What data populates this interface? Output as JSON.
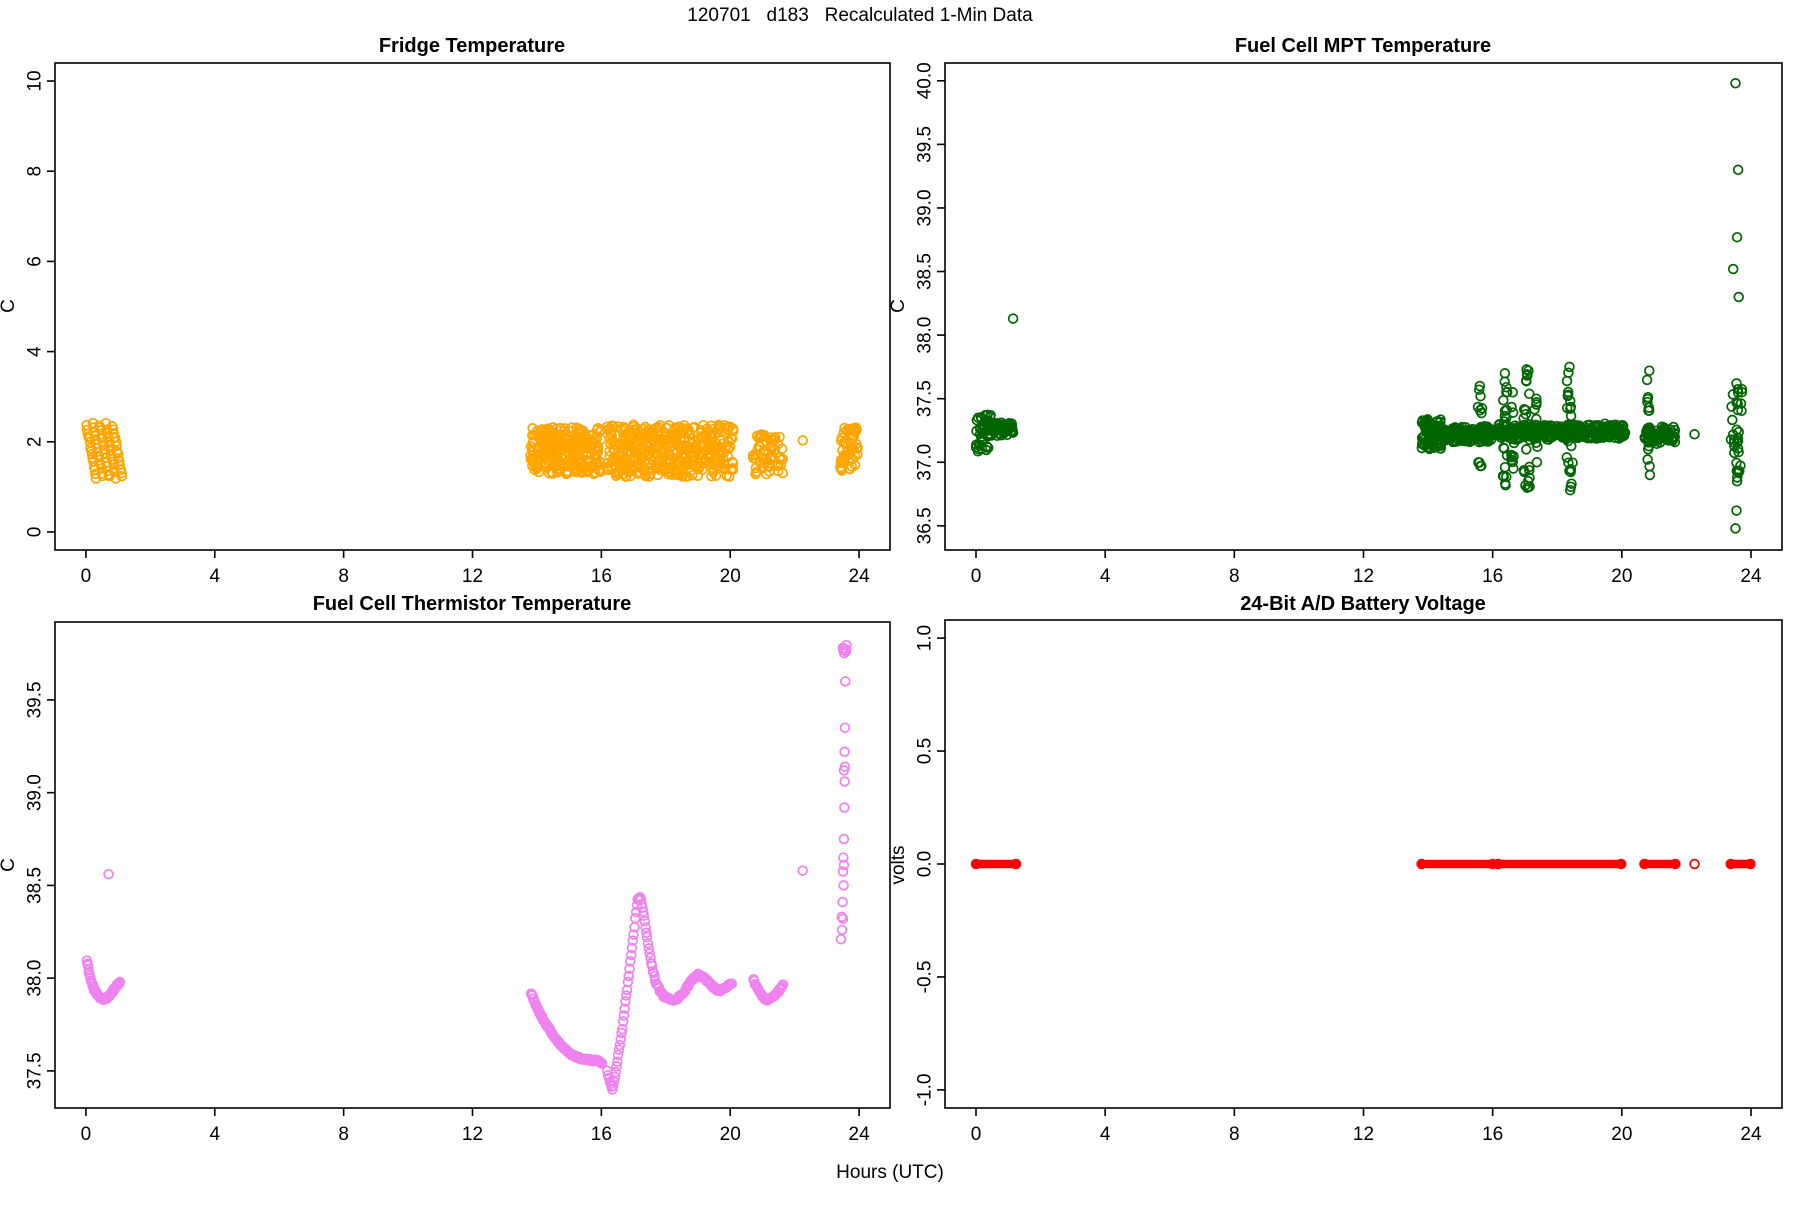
{
  "figure_title": "120701   d183   Recalculated 1-Min Data",
  "xlabel": "Hours (UTC)",
  "chart_data": [
    {
      "id": "fridge-temperature",
      "type": "scatter",
      "title": "Fridge Temperature",
      "ylabel": "C",
      "point_color": "#FFA500",
      "marker": "open-circle",
      "grid": false,
      "legend": "none",
      "xlim": [
        -0.96,
        24.96
      ],
      "ylim": [
        -0.4,
        10.4
      ],
      "xticks": [
        "0",
        "4",
        "8",
        "12",
        "16",
        "20",
        "24"
      ],
      "yticks": [
        "0",
        "2",
        "4",
        "6",
        "8",
        "10"
      ],
      "elements": [
        {
          "type": "streaks",
          "t0": 0.02,
          "streaks": 5,
          "gap": 0.2,
          "dt": 0.3,
          "vtop": 2.38,
          "vbot": 1.22,
          "n": 15,
          "note": "sawtooth cooling cycles 0-1.2h, 1.2-2.4 C"
        },
        {
          "type": "band",
          "t0": 13.8,
          "t1": 16.0,
          "vmin": 1.28,
          "vmax": 2.32,
          "n": 250
        },
        {
          "type": "band",
          "t0": 16.17,
          "t1": 20.1,
          "vmin": 1.22,
          "vmax": 2.38,
          "n": 430
        },
        {
          "type": "band",
          "t0": 20.7,
          "t1": 21.65,
          "vmin": 1.28,
          "vmax": 2.22,
          "n": 62
        },
        {
          "type": "points",
          "pts": [
            [
              22.25,
              2.03
            ]
          ]
        },
        {
          "type": "band",
          "t0": 23.38,
          "t1": 23.97,
          "vmin": 1.35,
          "vmax": 2.33,
          "n": 50
        }
      ]
    },
    {
      "id": "fuel-cell-mpt-temperature",
      "type": "scatter",
      "title": "Fuel Cell MPT Temperature",
      "ylabel": "C",
      "point_color": "#006400",
      "marker": "open-circle",
      "grid": false,
      "legend": "none",
      "xlim": [
        -0.96,
        24.96
      ],
      "ylim": [
        36.31,
        40.14
      ],
      "xticks": [
        "0",
        "4",
        "8",
        "12",
        "16",
        "20",
        "24"
      ],
      "yticks": [
        "36.5",
        "37.0",
        "37.5",
        "38.0",
        "38.5",
        "39.0",
        "39.5",
        "40.0"
      ],
      "elements": [
        {
          "type": "band",
          "t0": 0.0,
          "t1": 0.5,
          "vmin": 37.08,
          "vmax": 37.38,
          "n": 45
        },
        {
          "type": "tightband",
          "t0": 0.4,
          "t1": 1.15,
          "center": 37.26,
          "amp": 0.03,
          "n": 70
        },
        {
          "type": "points",
          "pts": [
            [
              1.15,
              38.13
            ]
          ]
        },
        {
          "type": "band",
          "t0": 13.8,
          "t1": 14.4,
          "vmin": 37.1,
          "vmax": 37.34,
          "n": 80
        },
        {
          "type": "tightband",
          "t0": 14.3,
          "t1": 16.0,
          "center": 37.22,
          "amp": 0.035,
          "n": 170
        },
        {
          "type": "burst",
          "t": 15.6,
          "spread": 0.08,
          "vmin": 36.97,
          "vmax": 37.6,
          "n": 16
        },
        {
          "type": "tightband",
          "t0": 16.17,
          "t1": 20.1,
          "center": 37.24,
          "amp": 0.035,
          "n": 380
        },
        {
          "type": "burst",
          "t": 16.38,
          "spread": 0.09,
          "vmin": 36.82,
          "vmax": 37.7,
          "n": 22
        },
        {
          "type": "burst",
          "t": 16.62,
          "spread": 0.06,
          "vmin": 36.95,
          "vmax": 37.55,
          "n": 12
        },
        {
          "type": "burst",
          "t": 17.05,
          "spread": 0.1,
          "vmin": 36.8,
          "vmax": 37.73,
          "n": 26
        },
        {
          "type": "burst",
          "t": 17.35,
          "spread": 0.06,
          "vmin": 37.0,
          "vmax": 37.5,
          "n": 10
        },
        {
          "type": "burst",
          "t": 18.38,
          "spread": 0.1,
          "vmin": 36.78,
          "vmax": 37.75,
          "n": 26
        },
        {
          "type": "tightband",
          "t0": 20.7,
          "t1": 21.65,
          "center": 37.22,
          "amp": 0.04,
          "n": 85
        },
        {
          "type": "burst",
          "t": 20.85,
          "spread": 0.07,
          "vmin": 36.9,
          "vmax": 37.72,
          "n": 16
        },
        {
          "type": "points",
          "pts": [
            [
              22.25,
              37.22
            ]
          ]
        },
        {
          "type": "burst",
          "t": 23.55,
          "spread": 0.17,
          "vmin": 36.85,
          "vmax": 37.62,
          "n": 34
        },
        {
          "type": "points",
          "pts": [
            [
              23.52,
              39.98
            ],
            [
              23.6,
              39.3
            ],
            [
              23.57,
              38.77
            ],
            [
              23.45,
              38.52
            ],
            [
              23.62,
              38.3
            ],
            [
              23.55,
              36.62
            ],
            [
              23.52,
              36.48
            ]
          ]
        }
      ]
    },
    {
      "id": "fuel-cell-thermistor-temperature",
      "type": "scatter",
      "title": "Fuel Cell Thermistor Temperature",
      "ylabel": "C",
      "point_color": "#EE82EE",
      "marker": "open-circle",
      "grid": false,
      "legend": "none",
      "xlim": [
        -0.96,
        24.96
      ],
      "ylim": [
        37.3,
        39.92
      ],
      "xticks": [
        "0",
        "4",
        "8",
        "12",
        "16",
        "20",
        "24"
      ],
      "yticks": [
        "37.5",
        "38.0",
        "38.5",
        "39.0",
        "39.5"
      ],
      "elements": [
        {
          "type": "curve",
          "step": 1.2,
          "jit": 0.006,
          "pts": [
            [
              0.03,
              38.1
            ],
            [
              0.12,
              38.01
            ],
            [
              0.25,
              37.94
            ],
            [
              0.4,
              37.9
            ],
            [
              0.55,
              37.885
            ],
            [
              0.7,
              37.9
            ],
            [
              0.88,
              37.94
            ],
            [
              1.05,
              37.98
            ]
          ]
        },
        {
          "type": "points",
          "pts": [
            [
              0.7,
              38.56
            ]
          ]
        },
        {
          "type": "curve",
          "step": 1.2,
          "jit": 0.005,
          "pts": [
            [
              13.82,
              37.92
            ],
            [
              14.0,
              37.84
            ],
            [
              14.25,
              37.76
            ],
            [
              14.55,
              37.68
            ],
            [
              14.85,
              37.62
            ],
            [
              15.1,
              37.585
            ],
            [
              15.3,
              37.57
            ],
            [
              15.6,
              37.56
            ],
            [
              15.9,
              37.555
            ],
            [
              16.02,
              37.54
            ]
          ]
        },
        {
          "type": "curve",
          "step": 1.6,
          "jit": 0.006,
          "pts": [
            [
              16.18,
              37.5
            ],
            [
              16.27,
              37.44
            ],
            [
              16.34,
              37.4
            ],
            [
              16.42,
              37.47
            ],
            [
              16.52,
              37.58
            ],
            [
              16.65,
              37.73
            ],
            [
              16.8,
              37.94
            ],
            [
              16.95,
              38.16
            ],
            [
              17.05,
              38.32
            ],
            [
              17.13,
              38.43
            ],
            [
              17.2,
              38.44
            ],
            [
              17.3,
              38.36
            ],
            [
              17.42,
              38.22
            ],
            [
              17.55,
              38.08
            ],
            [
              17.7,
              37.97
            ],
            [
              17.9,
              37.91
            ],
            [
              18.1,
              37.885
            ],
            [
              18.3,
              37.88
            ],
            [
              18.55,
              37.92
            ],
            [
              18.8,
              37.99
            ],
            [
              19.0,
              38.02
            ],
            [
              19.2,
              38.0
            ],
            [
              19.45,
              37.955
            ],
            [
              19.65,
              37.93
            ],
            [
              19.85,
              37.95
            ],
            [
              20.05,
              37.97
            ]
          ]
        },
        {
          "type": "curve",
          "step": 1.6,
          "jit": 0.006,
          "pts": [
            [
              20.72,
              37.99
            ],
            [
              20.92,
              37.92
            ],
            [
              21.12,
              37.88
            ],
            [
              21.32,
              37.895
            ],
            [
              21.5,
              37.93
            ],
            [
              21.64,
              37.965
            ]
          ]
        },
        {
          "type": "points",
          "pts": [
            [
              22.25,
              38.58
            ]
          ]
        },
        {
          "type": "points",
          "pts": [
            [
              23.44,
              38.21
            ],
            [
              23.47,
              38.26
            ],
            [
              23.5,
              38.32
            ],
            [
              23.46,
              38.33
            ],
            [
              23.49,
              38.41
            ],
            [
              23.52,
              38.5
            ],
            [
              23.5,
              38.575
            ],
            [
              23.53,
              38.61
            ],
            [
              23.51,
              38.65
            ],
            [
              23.53,
              38.75
            ],
            [
              23.54,
              38.92
            ],
            [
              23.55,
              39.06
            ],
            [
              23.53,
              39.12
            ],
            [
              23.56,
              39.14
            ],
            [
              23.55,
              39.22
            ],
            [
              23.56,
              39.35
            ],
            [
              23.57,
              39.6
            ]
          ]
        },
        {
          "type": "band",
          "t0": 23.47,
          "t1": 23.62,
          "vmin": 39.74,
          "vmax": 39.83,
          "n": 9
        }
      ]
    },
    {
      "id": "battery-voltage",
      "type": "scatter",
      "title": "24-Bit A/D Battery Voltage",
      "ylabel": "volts",
      "point_color": "#FF0000",
      "marker": "open-circle",
      "grid": false,
      "legend": "none",
      "xlim": [
        -0.96,
        24.96
      ],
      "ylim": [
        -1.08,
        1.08
      ],
      "xticks": [
        "0",
        "4",
        "8",
        "12",
        "16",
        "20",
        "24"
      ],
      "yticks": [
        "-1.0",
        "-0.5",
        "0.0",
        "0.5",
        "1.0"
      ],
      "elements": [
        {
          "type": "vline-series",
          "v": 0.0,
          "segs": [
            [
              0.0,
              1.24
            ],
            [
              13.8,
              16.0
            ],
            [
              16.17,
              19.98
            ],
            [
              20.7,
              21.66
            ],
            [
              22.25,
              22.25
            ],
            [
              23.37,
              23.98
            ]
          ],
          "note": "all readings 0.0 volts"
        }
      ]
    }
  ]
}
